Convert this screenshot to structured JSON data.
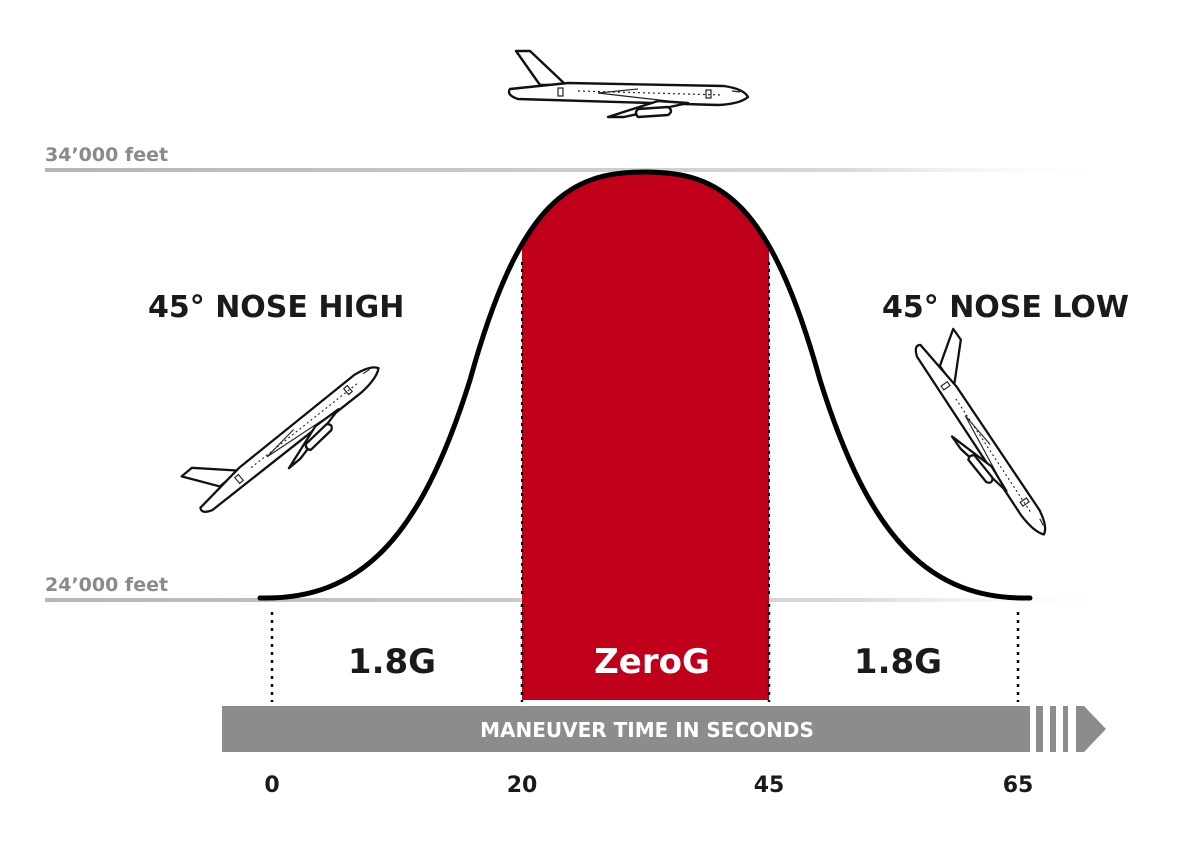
{
  "altitudes": {
    "top": "34’000 feet",
    "bottom": "24’000 feet"
  },
  "attitudes": {
    "left": "45° NOSE HIGH",
    "right": "45° NOSE LOW"
  },
  "phases": [
    {
      "label": "1.8G"
    },
    {
      "label": "ZeroG"
    },
    {
      "label": "1.8G"
    }
  ],
  "time_axis": {
    "label": "MANEUVER TIME IN SECONDS",
    "ticks": [
      "0",
      "20",
      "45",
      "65"
    ]
  },
  "colors": {
    "zero_g_fill": "#c0001b",
    "time_bar": "#8c8c8c",
    "altitude_line": "#c4c4c4",
    "curve": "#000000"
  },
  "icons": [
    "airplane-level-icon",
    "airplane-nose-high-icon",
    "airplane-nose-low-icon",
    "arrow-right-icon"
  ]
}
